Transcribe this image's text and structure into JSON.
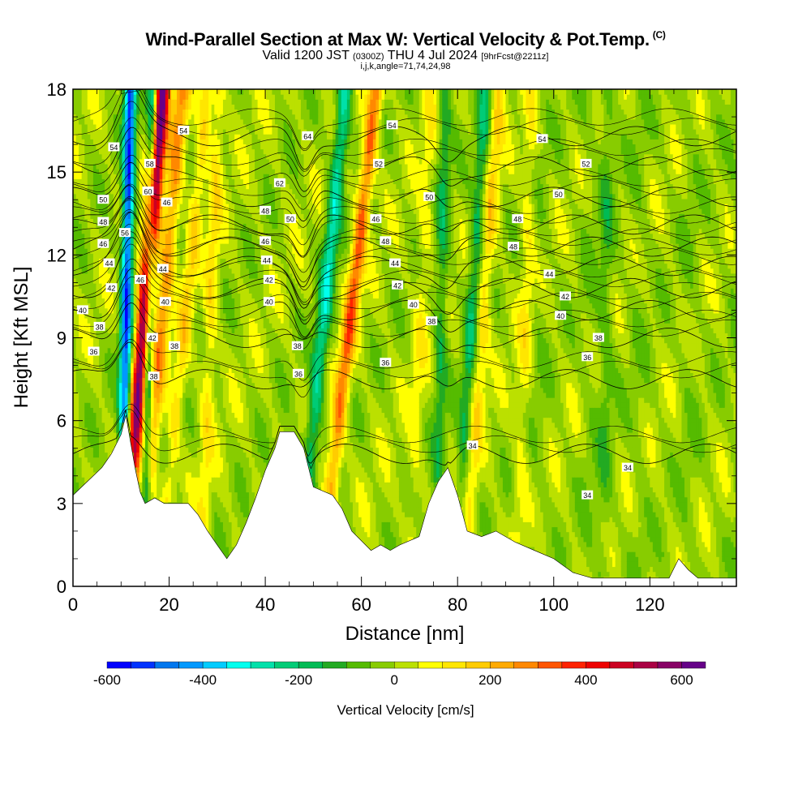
{
  "header": {
    "title": "Wind-Parallel Section at Max W: Vertical Velocity & Pot.Temp.",
    "copyright": "(C)",
    "valid_prefix": "Valid 1200 JST",
    "valid_utc": "(0300Z)",
    "valid_date": "THU 4 Jul 2024",
    "forecast": "[9hrFcst@2211z]",
    "ijk": "i,j,k,angle=71,74,24,98"
  },
  "chart_data": {
    "type": "heatmap",
    "xlabel": "Distance [nm]",
    "ylabel": "Height [Kft MSL]",
    "xlim": [
      0,
      138
    ],
    "ylim": [
      0,
      18
    ],
    "x_ticks": [
      "0",
      "20",
      "40",
      "60",
      "80",
      "100",
      "120"
    ],
    "y_ticks": [
      "0",
      "3",
      "6",
      "9",
      "12",
      "15",
      "18"
    ],
    "colorbar": {
      "label": "Vertical Velocity [cm/s]",
      "min": -600,
      "max": 650,
      "step": 50,
      "tick_labels": [
        "-600",
        "-400",
        "-200",
        "0",
        "200",
        "400",
        "600"
      ],
      "colors": [
        "#0000ff",
        "#0033ff",
        "#0077ee",
        "#0099ff",
        "#00ccff",
        "#00ffee",
        "#00e0aa",
        "#00cc77",
        "#00bb55",
        "#22aa22",
        "#55bb00",
        "#88cc00",
        "#bbe000",
        "#ffff00",
        "#ffe600",
        "#ffcc00",
        "#ffaa00",
        "#ff8800",
        "#ff5500",
        "#ff2200",
        "#ee0000",
        "#cc0022",
        "#aa0044",
        "#880066",
        "#660088"
      ]
    },
    "terrain": [
      [
        0,
        3.3
      ],
      [
        3,
        3.8
      ],
      [
        6,
        4.3
      ],
      [
        8,
        4.8
      ],
      [
        10,
        5.5
      ],
      [
        11,
        6.2
      ],
      [
        12,
        5.2
      ],
      [
        13,
        4.2
      ],
      [
        14,
        3.4
      ],
      [
        15,
        3.0
      ],
      [
        17,
        3.2
      ],
      [
        19,
        3.0
      ],
      [
        24,
        3.0
      ],
      [
        26,
        2.6
      ],
      [
        28,
        2.0
      ],
      [
        30,
        1.5
      ],
      [
        32,
        1.0
      ],
      [
        34,
        1.5
      ],
      [
        36,
        2.3
      ],
      [
        38,
        3.2
      ],
      [
        40,
        4.2
      ],
      [
        42,
        5.0
      ],
      [
        43,
        5.6
      ],
      [
        46,
        5.6
      ],
      [
        48,
        5.0
      ],
      [
        50,
        3.6
      ],
      [
        54,
        3.3
      ],
      [
        56,
        2.8
      ],
      [
        58,
        2.0
      ],
      [
        62,
        1.3
      ],
      [
        64,
        1.5
      ],
      [
        66,
        1.3
      ],
      [
        68,
        1.5
      ],
      [
        72,
        1.8
      ],
      [
        74,
        3.0
      ],
      [
        76,
        3.8
      ],
      [
        78,
        4.3
      ],
      [
        80,
        3.3
      ],
      [
        82,
        2.0
      ],
      [
        85,
        1.8
      ],
      [
        88,
        2.0
      ],
      [
        92,
        1.6
      ],
      [
        96,
        1.3
      ],
      [
        100,
        1.0
      ],
      [
        104,
        0.5
      ],
      [
        108,
        0.3
      ],
      [
        124,
        0.3
      ],
      [
        126,
        1.0
      ],
      [
        128,
        0.6
      ],
      [
        130,
        0.3
      ],
      [
        138,
        0.3
      ]
    ],
    "theta_contours": [
      {
        "label": "34",
        "bend_x": [
          78,
          110
        ],
        "base_y": 4.8
      },
      {
        "label": "36",
        "base_y": 7.5
      },
      {
        "label": "38",
        "base_y": 9.0
      },
      {
        "label": "40",
        "base_y": 10.0
      },
      {
        "label": "42",
        "base_y": 10.8
      },
      {
        "label": "44",
        "base_y": 11.6
      },
      {
        "label": "46",
        "base_y": 12.3
      },
      {
        "label": "48",
        "base_y": 13.1
      },
      {
        "label": "50",
        "base_y": 14.1
      },
      {
        "label": "52",
        "base_y": 15.2
      },
      {
        "label": "54",
        "base_y": 16.3
      }
    ],
    "contour_labels": [
      {
        "text": "54",
        "x": 8.5,
        "y": 15.9
      },
      {
        "text": "50",
        "x": 6.3,
        "y": 14.0
      },
      {
        "text": "48",
        "x": 6.3,
        "y": 13.2
      },
      {
        "text": "46",
        "x": 6.3,
        "y": 12.4
      },
      {
        "text": "44",
        "x": 7.5,
        "y": 11.7
      },
      {
        "text": "42",
        "x": 8.0,
        "y": 10.8
      },
      {
        "text": "40",
        "x": 2.0,
        "y": 10.0
      },
      {
        "text": "38",
        "x": 5.5,
        "y": 9.4
      },
      {
        "text": "36",
        "x": 4.3,
        "y": 8.5
      },
      {
        "text": "54",
        "x": 23.0,
        "y": 16.5
      },
      {
        "text": "58",
        "x": 16.0,
        "y": 15.3
      },
      {
        "text": "60",
        "x": 15.6,
        "y": 14.3
      },
      {
        "text": "46",
        "x": 19.5,
        "y": 13.9
      },
      {
        "text": "56",
        "x": 10.8,
        "y": 12.8
      },
      {
        "text": "46",
        "x": 14.0,
        "y": 11.1
      },
      {
        "text": "44",
        "x": 18.7,
        "y": 11.5
      },
      {
        "text": "40",
        "x": 19.2,
        "y": 10.3
      },
      {
        "text": "42",
        "x": 16.5,
        "y": 9.0
      },
      {
        "text": "38",
        "x": 21.1,
        "y": 8.7
      },
      {
        "text": "38",
        "x": 16.8,
        "y": 7.6
      },
      {
        "text": "64",
        "x": 48.8,
        "y": 16.3
      },
      {
        "text": "62",
        "x": 43.0,
        "y": 14.6
      },
      {
        "text": "50",
        "x": 45.2,
        "y": 13.3
      },
      {
        "text": "48",
        "x": 40.0,
        "y": 13.6
      },
      {
        "text": "46",
        "x": 40.0,
        "y": 12.5
      },
      {
        "text": "44",
        "x": 40.3,
        "y": 11.8
      },
      {
        "text": "42",
        "x": 40.8,
        "y": 11.1
      },
      {
        "text": "40",
        "x": 40.8,
        "y": 10.3
      },
      {
        "text": "38",
        "x": 46.7,
        "y": 8.7
      },
      {
        "text": "36",
        "x": 46.9,
        "y": 7.7
      },
      {
        "text": "54",
        "x": 66.4,
        "y": 16.7
      },
      {
        "text": "52",
        "x": 63.6,
        "y": 15.3
      },
      {
        "text": "50",
        "x": 74.1,
        "y": 14.1
      },
      {
        "text": "46",
        "x": 63.0,
        "y": 13.3
      },
      {
        "text": "48",
        "x": 65.0,
        "y": 12.5
      },
      {
        "text": "44",
        "x": 67.0,
        "y": 11.7
      },
      {
        "text": "42",
        "x": 67.5,
        "y": 10.9
      },
      {
        "text": "40",
        "x": 70.8,
        "y": 10.2
      },
      {
        "text": "38",
        "x": 74.6,
        "y": 9.6
      },
      {
        "text": "36",
        "x": 65.0,
        "y": 8.1
      },
      {
        "text": "34",
        "x": 83.1,
        "y": 5.1
      },
      {
        "text": "54",
        "x": 97.6,
        "y": 16.2
      },
      {
        "text": "52",
        "x": 106.7,
        "y": 15.3
      },
      {
        "text": "50",
        "x": 101.0,
        "y": 14.2
      },
      {
        "text": "48",
        "x": 92.5,
        "y": 13.3
      },
      {
        "text": "48",
        "x": 91.6,
        "y": 12.3
      },
      {
        "text": "44",
        "x": 99.1,
        "y": 11.3
      },
      {
        "text": "42",
        "x": 102.4,
        "y": 10.5
      },
      {
        "text": "40",
        "x": 101.4,
        "y": 9.8
      },
      {
        "text": "38",
        "x": 109.3,
        "y": 9.0
      },
      {
        "text": "36",
        "x": 107.0,
        "y": 8.3
      },
      {
        "text": "34",
        "x": 107.0,
        "y": 3.3
      },
      {
        "text": "34",
        "x": 115.4,
        "y": 4.3
      }
    ],
    "updraft_bands": [
      {
        "x0": 10.5,
        "x1": 14.0,
        "slope": 0.45,
        "w": 650,
        "width": 1.6
      },
      {
        "x0": 14.0,
        "x1": 17.5,
        "slope": 0.5,
        "w": 250,
        "width": 1.6
      },
      {
        "x0": 18.5,
        "x1": 22.0,
        "slope": 0.55,
        "w": 150,
        "width": 1.4
      },
      {
        "x0": 26.0,
        "x1": 29.0,
        "slope": 0.2,
        "w": 120,
        "width": 1.4
      },
      {
        "x0": 51.0,
        "x1": 57.0,
        "slope": 0.65,
        "w": 320,
        "width": 1.5
      },
      {
        "x0": 70.0,
        "x1": 72.0,
        "slope": 0.25,
        "w": 80,
        "width": 1.5
      },
      {
        "x0": 82.0,
        "x1": 84.0,
        "slope": 0.4,
        "w": 150,
        "width": 1.5
      },
      {
        "x0": 92.0,
        "x1": 94.0,
        "slope": 0.2,
        "w": 90,
        "width": 1.5
      }
    ],
    "downdraft_bands": [
      {
        "x0": 10.0,
        "x1": 11.0,
        "slope": 0.1,
        "w": -520,
        "width": 1.2
      },
      {
        "x0": 14.5,
        "x1": 16.0,
        "slope": 0.1,
        "w": -360,
        "width": 1.0
      },
      {
        "x0": 47.0,
        "x1": 51.0,
        "slope": 0.55,
        "w": -270,
        "width": 1.5
      },
      {
        "x0": 80.0,
        "x1": 82.0,
        "slope": 0.35,
        "w": -180,
        "width": 1.4
      },
      {
        "x0": 75.0,
        "x1": 77.0,
        "slope": 0.1,
        "w": -140,
        "width": 1.3
      },
      {
        "x0": 110.0,
        "x1": 111.0,
        "slope": 0.05,
        "w": -90,
        "width": 1.5
      }
    ]
  }
}
